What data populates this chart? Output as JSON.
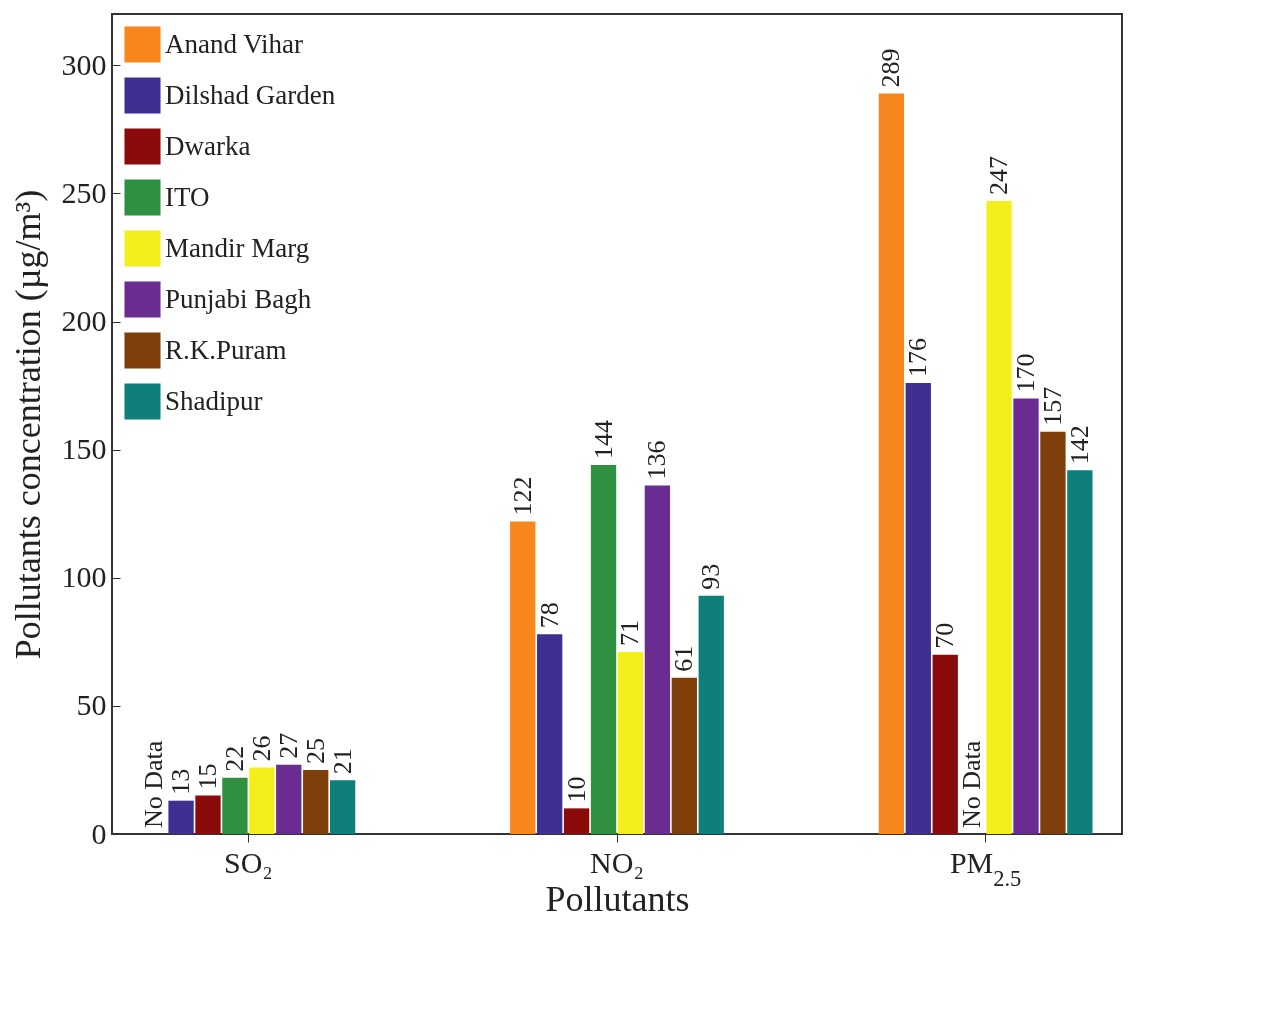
{
  "chart_data": {
    "type": "bar",
    "xlabel": "Pollutants",
    "ylabel": "Pollutants concentration (µg/m³)",
    "categories": [
      "SO₂",
      "NO₂",
      "PM$_{2.5}$"
    ],
    "ylim": [
      0,
      320
    ],
    "yticks": [
      0,
      50,
      100,
      150,
      200,
      250,
      300
    ],
    "legend": "top left",
    "grid": false,
    "series": [
      {
        "name": "Anand Vihar",
        "color": "#f7861c",
        "values": [
          null,
          122,
          289
        ],
        "value_labels": [
          "No Data",
          "122",
          "289"
        ]
      },
      {
        "name": "Dilshad Garden",
        "color": "#3d3091",
        "values": [
          13,
          78,
          176
        ],
        "value_labels": [
          "13",
          "78",
          "176"
        ]
      },
      {
        "name": "Dwarka",
        "color": "#8b0a0a",
        "values": [
          15,
          10,
          70
        ],
        "value_labels": [
          "15",
          "10",
          "70"
        ]
      },
      {
        "name": "ITO",
        "color": "#2e9040",
        "values": [
          22,
          144,
          null
        ],
        "value_labels": [
          "22",
          "144",
          "No Data"
        ]
      },
      {
        "name": "Mandir Marg",
        "color": "#f5ee1d",
        "values": [
          26,
          71,
          247
        ],
        "value_labels": [
          "26",
          "71",
          "247"
        ]
      },
      {
        "name": "Punjabi Bagh",
        "color": "#6a2c91",
        "values": [
          27,
          136,
          170
        ],
        "value_labels": [
          "27",
          "136",
          "170"
        ]
      },
      {
        "name": "R.K.Puram",
        "color": "#7e3f0a",
        "values": [
          25,
          61,
          157
        ],
        "value_labels": [
          "25",
          "61",
          "157"
        ]
      },
      {
        "name": "Shadipur",
        "color": "#0e7f7a",
        "values": [
          21,
          93,
          142
        ],
        "value_labels": [
          "21",
          "93",
          "142"
        ]
      }
    ]
  }
}
